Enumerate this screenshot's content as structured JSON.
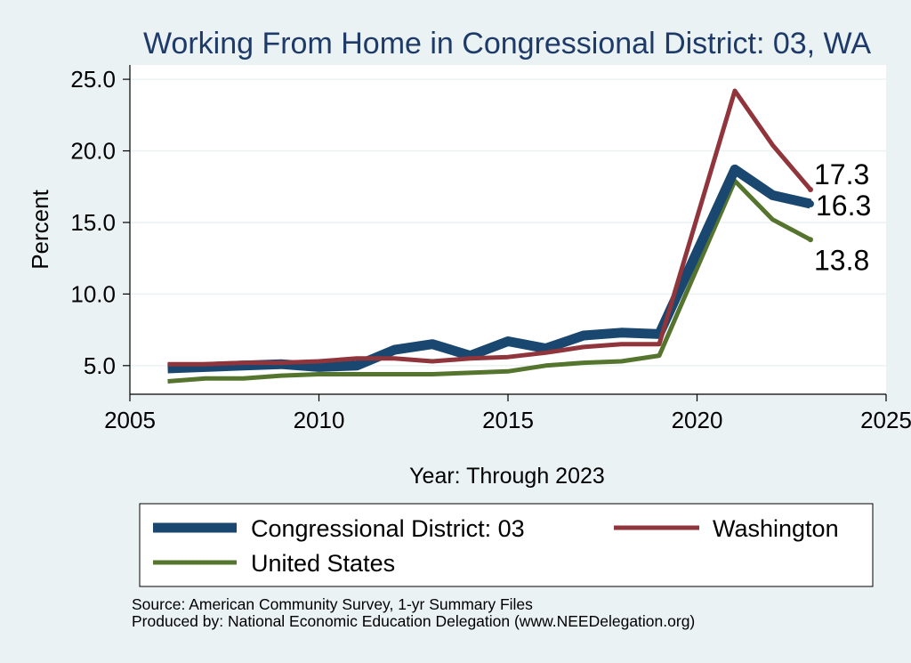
{
  "chart_data": {
    "type": "line",
    "title": "Working From Home in Congressional District: 03, WA",
    "xlabel": "Year: Through 2023",
    "ylabel": "Percent",
    "xlim": [
      2005,
      2025
    ],
    "ylim": [
      3,
      26
    ],
    "x_ticks": [
      2005,
      2010,
      2015,
      2020,
      2025
    ],
    "x_tick_labels": [
      "2005",
      "2010",
      "2015",
      "2020",
      "2025"
    ],
    "y_ticks": [
      5,
      10,
      15,
      20,
      25
    ],
    "y_tick_labels": [
      "5.0",
      "10.0",
      "15.0",
      "20.0",
      "25.0"
    ],
    "grid": true,
    "legend_position": "bottom",
    "x": [
      2006,
      2007,
      2008,
      2009,
      2010,
      2011,
      2012,
      2013,
      2014,
      2015,
      2016,
      2017,
      2018,
      2019,
      2021,
      2022,
      2023
    ],
    "series": [
      {
        "name": "Congressional District: 03",
        "color": "#1a476f",
        "values": [
          4.8,
          4.9,
          5.0,
          5.1,
          4.9,
          5.0,
          6.1,
          6.5,
          5.7,
          6.7,
          6.2,
          7.1,
          7.3,
          7.2,
          18.7,
          16.9,
          16.3
        ],
        "end_label": "16.3"
      },
      {
        "name": "Washington",
        "color": "#90353b",
        "values": [
          5.1,
          5.1,
          5.2,
          5.2,
          5.3,
          5.5,
          5.5,
          5.3,
          5.5,
          5.6,
          5.9,
          6.3,
          6.5,
          6.5,
          24.2,
          20.4,
          17.3
        ],
        "end_label": "17.3"
      },
      {
        "name": "United States",
        "color": "#55752f",
        "values": [
          3.9,
          4.1,
          4.1,
          4.3,
          4.4,
          4.4,
          4.4,
          4.4,
          4.5,
          4.6,
          5.0,
          5.2,
          5.3,
          5.7,
          17.9,
          15.2,
          13.8
        ],
        "end_label": "13.8"
      }
    ],
    "source_lines": [
      "Source: American Community Survey, 1-yr Summary Files",
      "Produced by: National Economic Education Delegation (www.NEEDelegation.org)"
    ]
  }
}
